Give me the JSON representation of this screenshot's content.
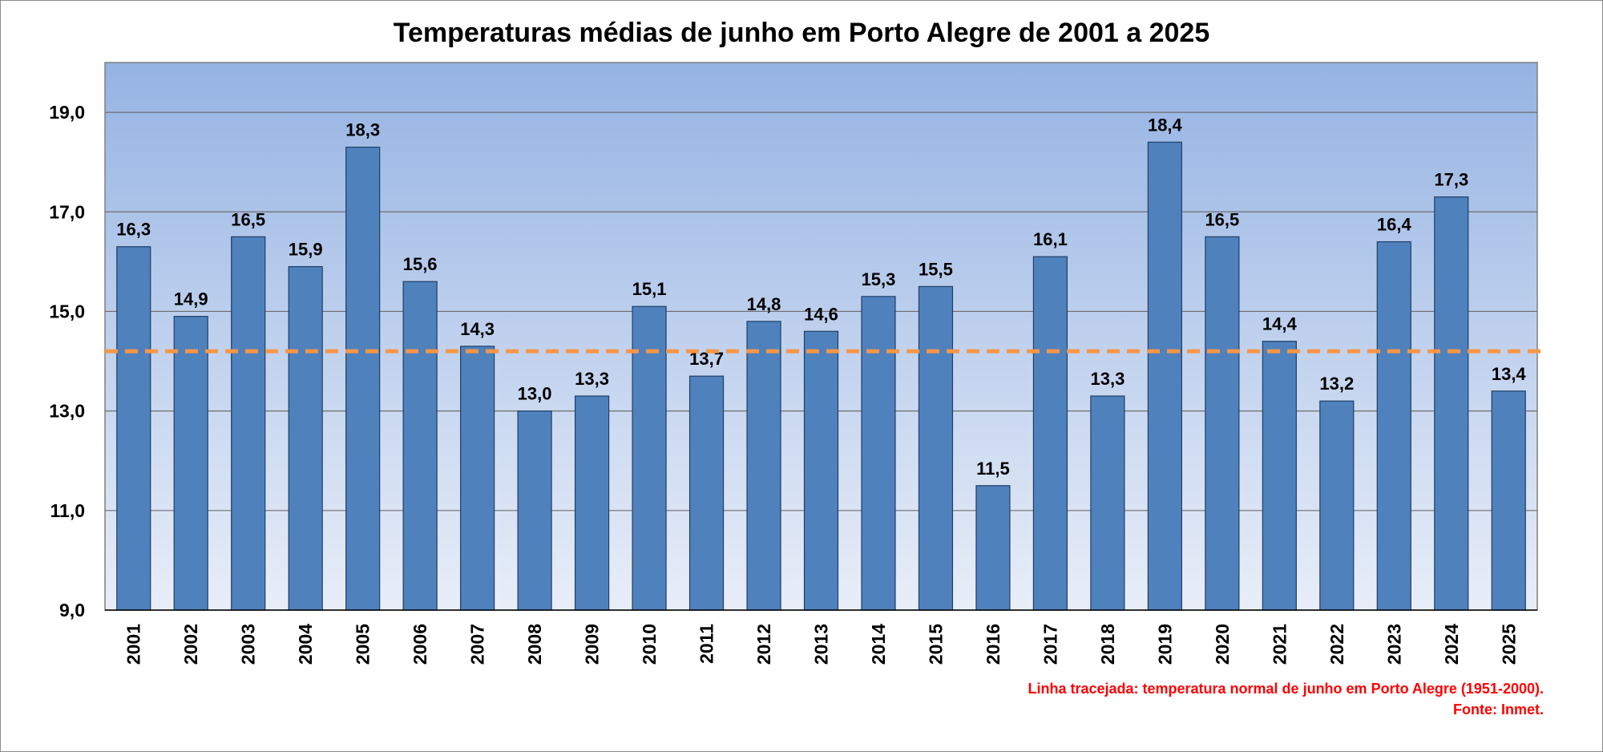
{
  "chart_data": {
    "type": "bar",
    "title": "Temperaturas médias de junho em Porto Alegre de 2001 a 2025",
    "xlabel": "",
    "ylabel": "",
    "categories": [
      "2001",
      "2002",
      "2003",
      "2004",
      "2005",
      "2006",
      "2007",
      "2008",
      "2009",
      "2010",
      "2011",
      "2012",
      "2013",
      "2014",
      "2015",
      "2016",
      "2017",
      "2018",
      "2019",
      "2020",
      "2021",
      "2022",
      "2023",
      "2024",
      "2025"
    ],
    "values": [
      16.3,
      14.9,
      16.5,
      15.9,
      18.3,
      15.6,
      14.3,
      13.0,
      13.3,
      15.1,
      13.7,
      14.8,
      14.6,
      15.3,
      15.5,
      11.5,
      16.1,
      13.3,
      18.4,
      16.5,
      14.4,
      13.2,
      16.4,
      17.3,
      13.4
    ],
    "data_labels": [
      "16,3",
      "14,9",
      "16,5",
      "15,9",
      "18,3",
      "15,6",
      "14,3",
      "13,0",
      "13,3",
      "15,1",
      "13,7",
      "14,8",
      "14,6",
      "15,3",
      "15,5",
      "11,5",
      "16,1",
      "13,3",
      "18,4",
      "16,5",
      "14,4",
      "13,2",
      "16,4",
      "17,3",
      "13,4"
    ],
    "ylim": [
      9,
      20
    ],
    "yticks": [
      9,
      11,
      13,
      15,
      17,
      19
    ],
    "ytick_labels": [
      "9,0",
      "11,0",
      "13,0",
      "15,0",
      "17,0",
      "19,0"
    ],
    "grid": true,
    "reference_line": {
      "value": 14.2,
      "style": "dashed"
    },
    "notes": [
      "Linha tracejada: temperatura normal de junho em Porto Alegre (1951-2000).",
      "Fonte: Inmet."
    ]
  },
  "colors": {
    "bar_fill": "#4f81bd",
    "bar_stroke": "#1f3f66",
    "plot_bg_top": "#95b3e3",
    "plot_bg_bottom": "#e9eef8",
    "gridline": "#6e6e6e",
    "reference_line": "#f79646",
    "note_text": "#ff0000"
  }
}
